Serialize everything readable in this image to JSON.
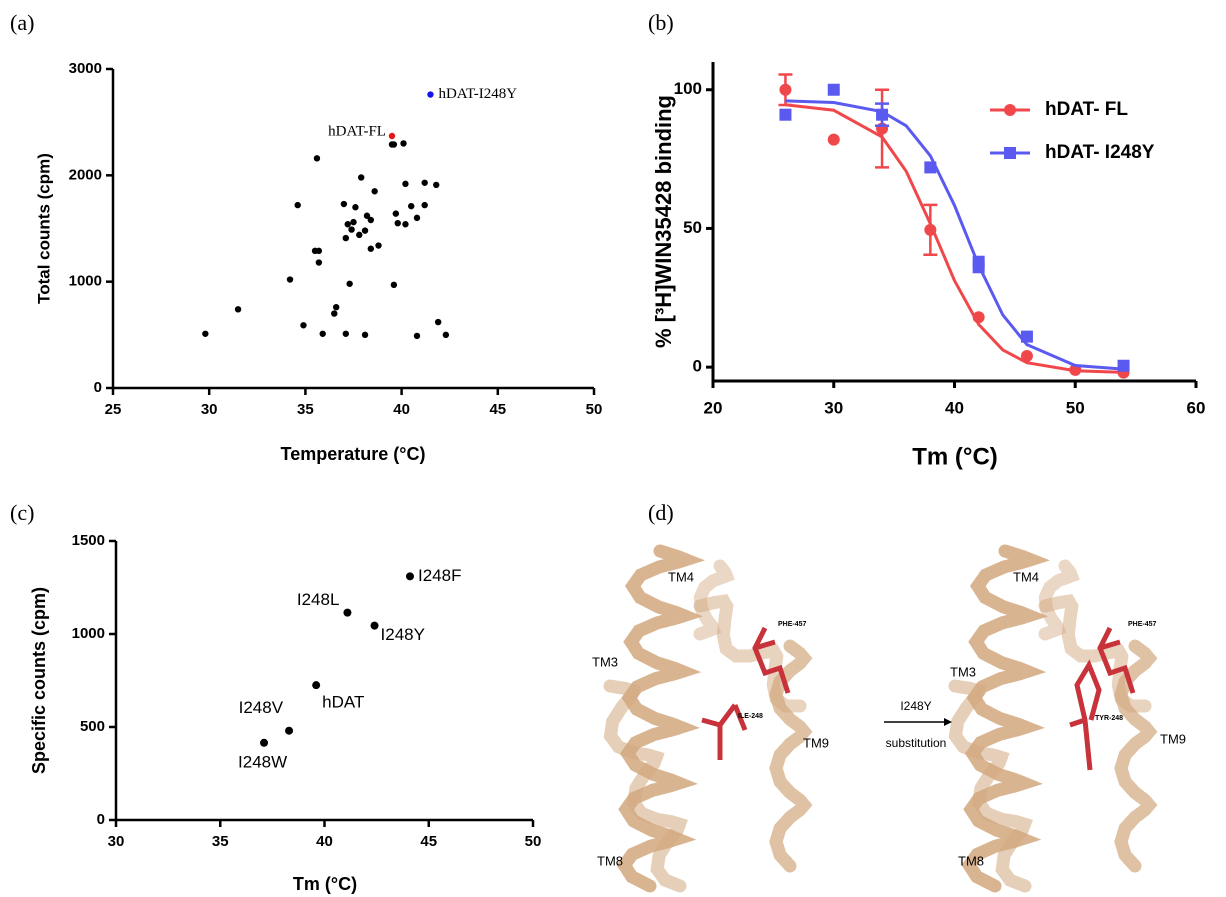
{
  "chart_data": [
    {
      "type": "scatter",
      "panel": "(a)",
      "xlabel": "Temperature (°C)",
      "ylabel": "Total counts (cpm)",
      "xlim": [
        25,
        50
      ],
      "xticks": [
        25,
        30,
        35,
        40,
        45,
        50
      ],
      "ylim": [
        0,
        3000
      ],
      "yticks": [
        0,
        1000,
        2000,
        3000
      ],
      "series": [
        {
          "color": "#000000",
          "x": [
            29.8,
            31.5,
            34.2,
            34.6,
            34.9,
            35.5,
            35.6,
            35.7,
            35.7,
            35.9,
            36.5,
            36.6,
            37.0,
            37.1,
            37.1,
            37.2,
            37.3,
            37.4,
            37.5,
            37.6,
            37.8,
            37.9,
            38.1,
            38.1,
            38.2,
            38.4,
            38.4,
            38.6,
            38.8,
            39.5,
            39.6,
            39.6,
            39.7,
            39.8,
            40.1,
            40.2,
            40.2,
            40.5,
            40.8,
            40.8,
            41.2,
            41.2,
            41.8,
            41.9,
            42.3
          ],
          "values": [
            510,
            740,
            1020,
            1720,
            590,
            1290,
            2160,
            1180,
            1290,
            510,
            700,
            760,
            1730,
            1410,
            510,
            1540,
            980,
            1490,
            1560,
            1700,
            1440,
            1980,
            1480,
            500,
            1620,
            1580,
            1310,
            1850,
            1340,
            2290,
            970,
            2290,
            1640,
            1550,
            2300,
            1920,
            1540,
            1710,
            1600,
            490,
            1930,
            1720,
            1910,
            620,
            500
          ]
        },
        {
          "name": "hDAT-FL",
          "color": "#e8141c",
          "x": [
            39.5
          ],
          "values": [
            2370
          ]
        },
        {
          "name": "hDAT-I248Y",
          "color": "#1414e8",
          "x": [
            41.5
          ],
          "values": [
            2760
          ]
        }
      ]
    },
    {
      "type": "scatter-fit",
      "panel": "(b)",
      "xlabel": "Tm (°C)",
      "ylabel": "% [³H]WIN35428 binding",
      "xlim": [
        20,
        60
      ],
      "xticks": [
        20,
        30,
        40,
        50,
        60
      ],
      "ylim": [
        -5,
        110
      ],
      "yticks": [
        0,
        50,
        100
      ],
      "legend": "upper right",
      "series": [
        {
          "name": "hDAT- FL",
          "color": "#f0474b",
          "marker": "circle",
          "x": [
            26,
            30,
            34,
            38,
            42,
            46,
            50,
            54
          ],
          "values": [
            100,
            82,
            86,
            49.5,
            18,
            4,
            -1,
            -2
          ],
          "errors": [
            5.5,
            null,
            14,
            9,
            null,
            null,
            null,
            null
          ],
          "fit_x": [
            26,
            30,
            34,
            36,
            38,
            40,
            42,
            44,
            46,
            50,
            54
          ],
          "fit_values": [
            94.6,
            92.6,
            83,
            70.6,
            51.7,
            31.2,
            15.4,
            6.2,
            1.6,
            -1.3,
            -1.9
          ]
        },
        {
          "name": "hDAT- I248Y",
          "color": "#5a5af0",
          "marker": "square",
          "x": [
            26,
            30,
            34,
            38,
            42,
            42,
            46,
            54
          ],
          "values": [
            91,
            100,
            91,
            72,
            36,
            38,
            11,
            0.5
          ],
          "errors": [
            null,
            null,
            4,
            null,
            null,
            null,
            null,
            null
          ],
          "fit_x": [
            26,
            30,
            34,
            36,
            38,
            40,
            42,
            44,
            46,
            50,
            54
          ],
          "fit_values": [
            96,
            95.4,
            92.1,
            87,
            76.2,
            58.3,
            36.7,
            18.8,
            8.1,
            0.6,
            -0.7
          ]
        }
      ]
    },
    {
      "type": "scatter",
      "panel": "(c)",
      "xlabel": "Tm (°C)",
      "ylabel": "Specific counts (cpm)",
      "xlim": [
        30,
        50
      ],
      "xticks": [
        30,
        35,
        40,
        45,
        50
      ],
      "ylim": [
        0,
        1500
      ],
      "yticks": [
        0,
        500,
        1000,
        1500
      ],
      "series": [
        {
          "color": "#000000",
          "x": [
            44.1,
            41.1,
            42.4,
            39.6,
            38.3,
            37.1
          ],
          "values": [
            1310,
            1115,
            1045,
            725,
            480,
            415
          ],
          "labels": [
            "I248F",
            "I248L",
            "I248Y",
            "hDAT",
            "I248V",
            "I248W"
          ]
        }
      ]
    }
  ],
  "structure": {
    "panel": "(d)",
    "left": [
      "TM4",
      "TM3",
      "TM8",
      "TM9",
      "PHE-457",
      "ILE-248"
    ],
    "right": [
      "TM4",
      "TM3",
      "TM8",
      "TM9",
      "PHE-457",
      "TYR-248"
    ],
    "arrow_top": "I248Y",
    "arrow_bottom": "substitution"
  }
}
